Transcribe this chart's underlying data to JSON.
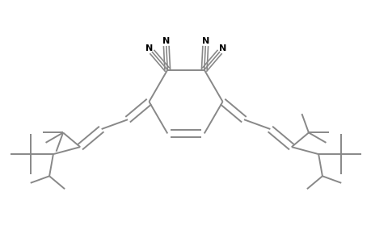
{
  "background_color": "#ffffff",
  "bond_color": "#888888",
  "text_color": "#000000",
  "line_width": 1.4,
  "figsize": [
    4.6,
    3.0
  ],
  "dpi": 100,
  "xlim": [
    -4.8,
    4.8
  ],
  "ylim": [
    -3.2,
    2.2
  ]
}
